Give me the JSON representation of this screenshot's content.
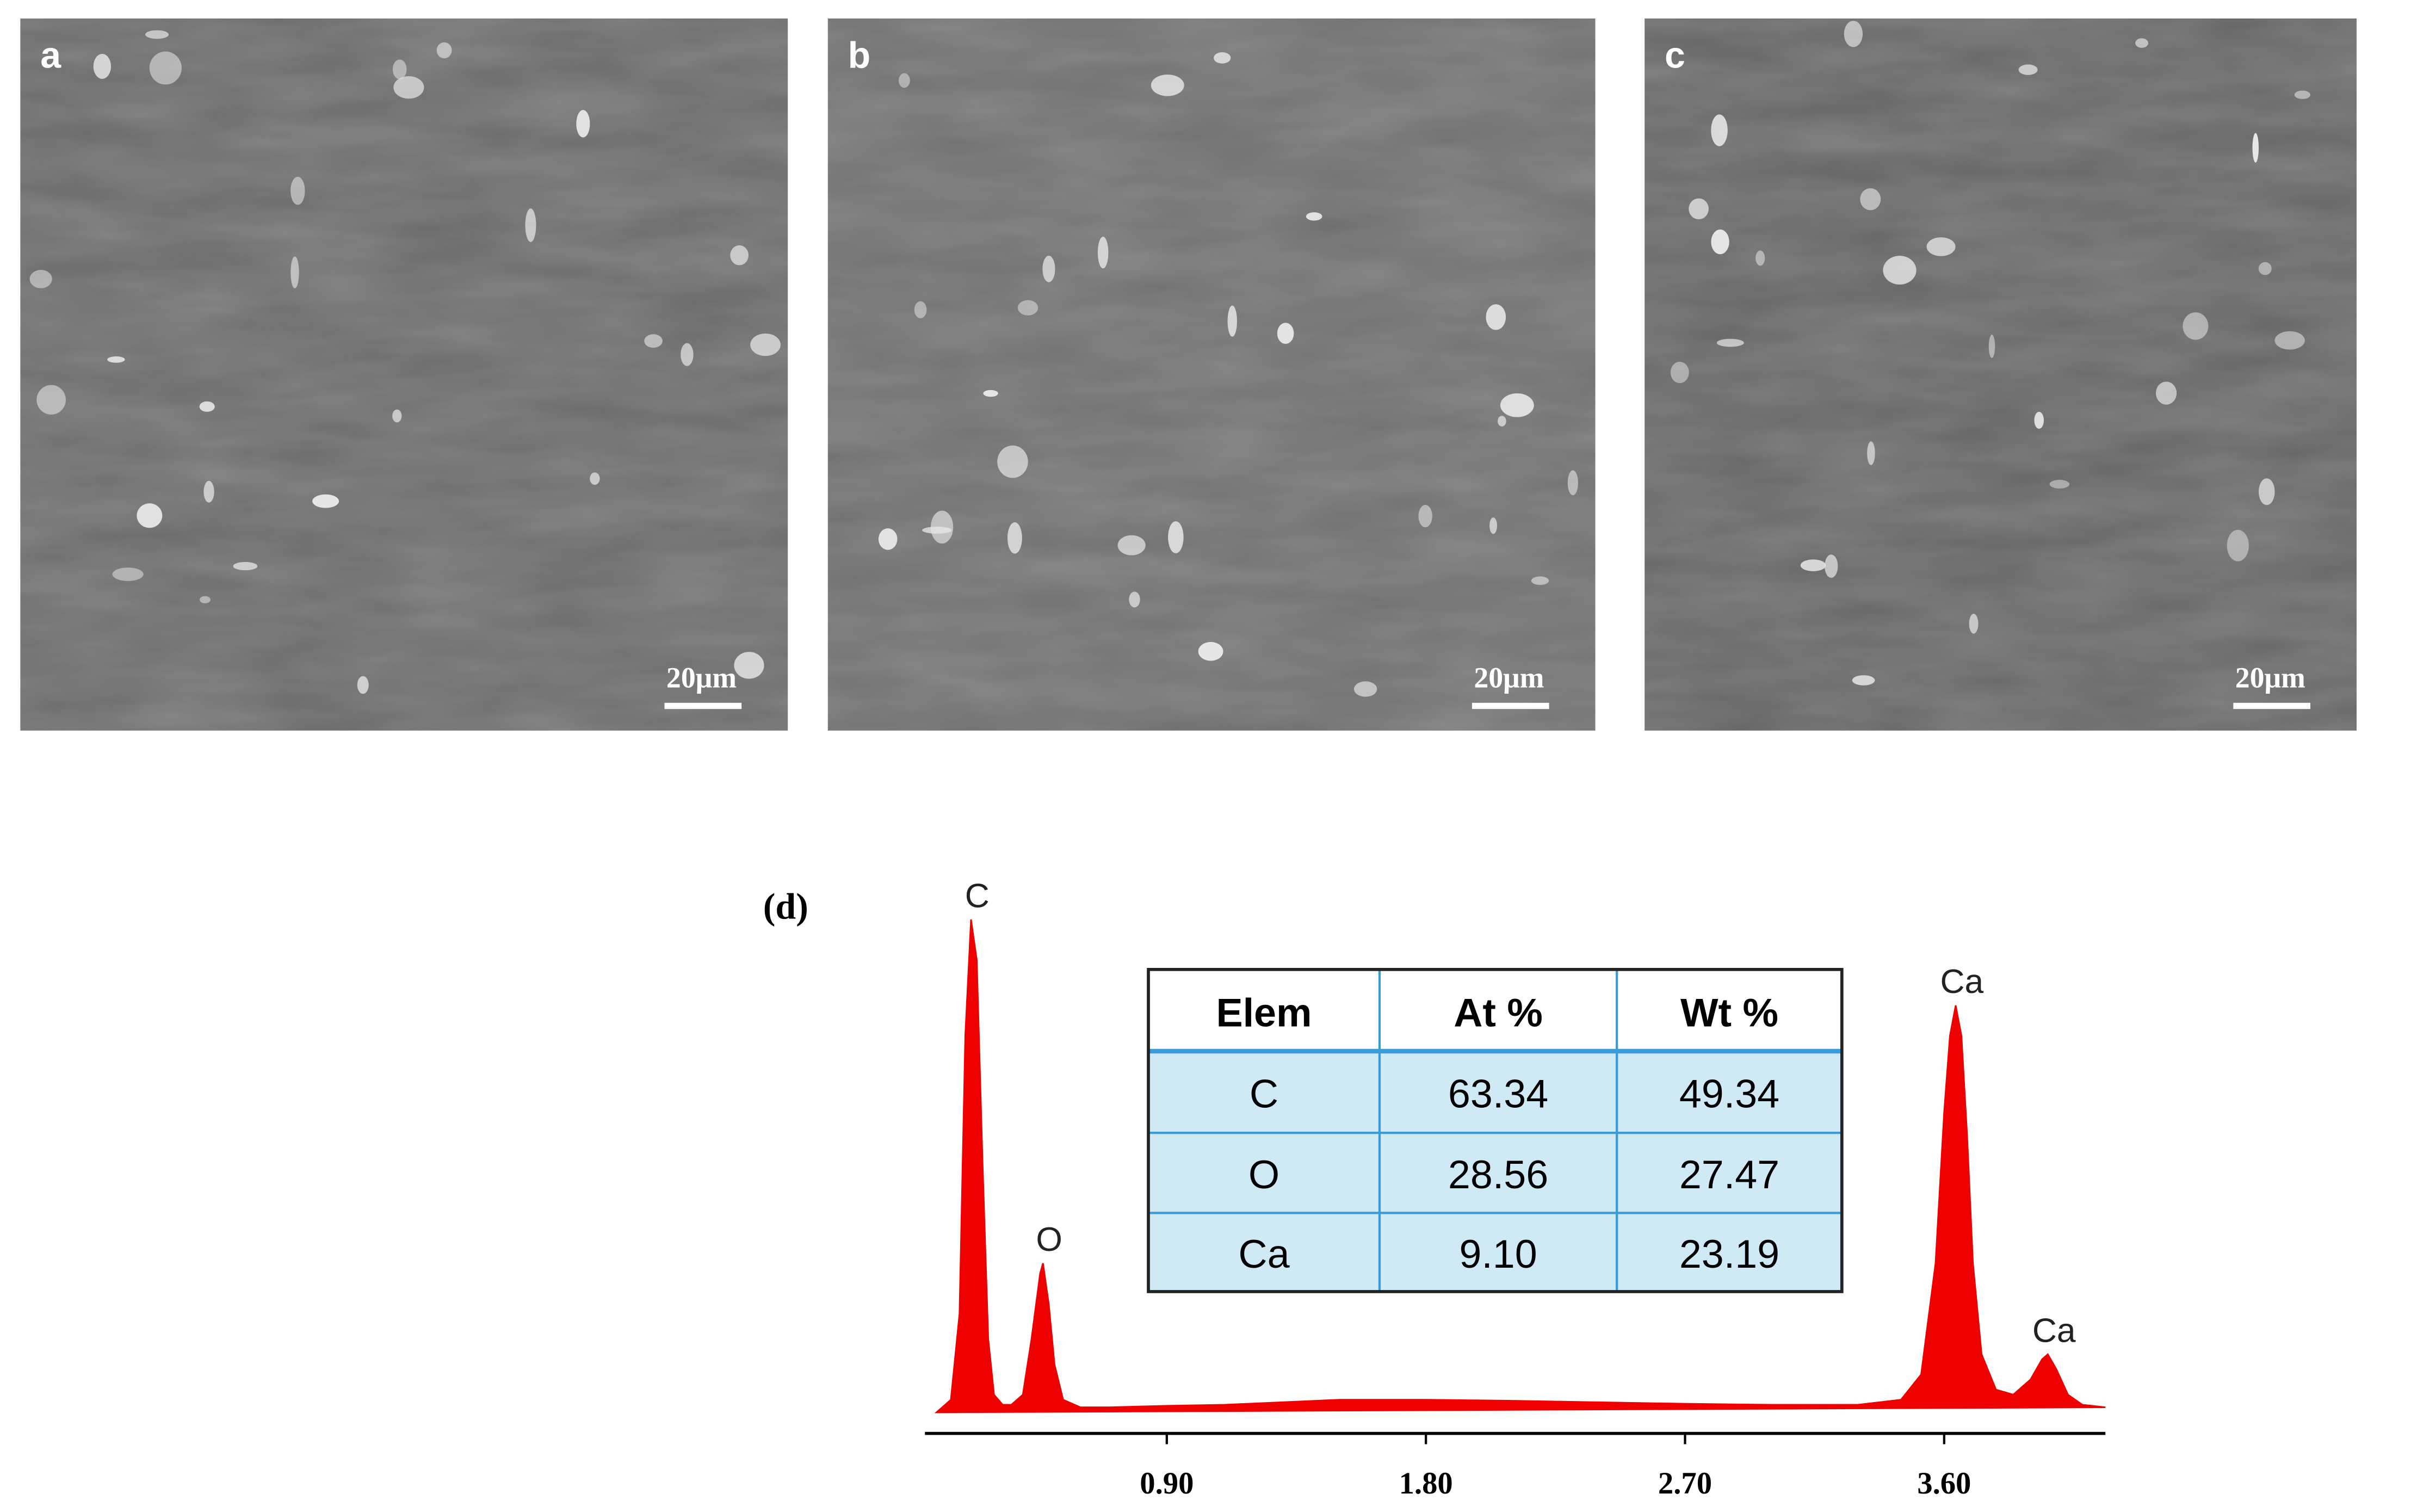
{
  "panels": [
    {
      "label": "a",
      "scale_bar": "20μm"
    },
    {
      "label": "b",
      "scale_bar": "20μm"
    },
    {
      "label": "c",
      "scale_bar": "20μm"
    }
  ],
  "chart_data": {
    "type": "area",
    "label": "(d)",
    "color": "#ee0000",
    "x": [
      0.1,
      0.15,
      0.18,
      0.2,
      0.22,
      0.24,
      0.26,
      0.28,
      0.3,
      0.33,
      0.36,
      0.4,
      0.43,
      0.46,
      0.47,
      0.49,
      0.51,
      0.54,
      0.6,
      0.7,
      0.9,
      1.1,
      1.3,
      1.5,
      1.8,
      2.1,
      2.4,
      2.7,
      3.0,
      3.3,
      3.45,
      3.52,
      3.57,
      3.6,
      3.62,
      3.64,
      3.66,
      3.68,
      3.7,
      3.73,
      3.78,
      3.84,
      3.9,
      3.94,
      3.96,
      3.99,
      4.03,
      4.08,
      4.16
    ],
    "values": [
      0.5,
      3,
      20,
      75,
      98,
      90,
      50,
      15,
      4,
      2,
      2,
      4,
      15,
      28,
      30,
      22,
      10,
      3,
      1.5,
      1.5,
      1.8,
      2,
      2.5,
      3,
      3,
      2.8,
      2.5,
      2.2,
      2,
      2,
      3,
      8,
      30,
      60,
      75,
      81,
      75,
      55,
      30,
      12,
      5,
      4,
      7,
      11,
      12,
      9,
      4,
      2,
      1.5
    ],
    "xlim": [
      0.06,
      4.16
    ],
    "ylim": [
      0,
      100
    ],
    "xticks": [
      {
        "value": 0.9,
        "label": "0.90"
      },
      {
        "value": 1.8,
        "label": "1.80"
      },
      {
        "value": 2.7,
        "label": "2.70"
      },
      {
        "value": 3.6,
        "label": "3.60"
      }
    ],
    "annotations": [
      {
        "text": "C",
        "x": 0.22
      },
      {
        "text": "O",
        "x": 0.47
      },
      {
        "text": "Ca",
        "x": 3.64
      },
      {
        "text": "Ca",
        "x": 3.96
      }
    ],
    "table": {
      "columns": [
        "Elem",
        "At %",
        "Wt %"
      ],
      "rows": [
        [
          "C",
          "63.34",
          "49.34"
        ],
        [
          "O",
          "28.56",
          "27.47"
        ],
        [
          "Ca",
          "9.10",
          "23.19"
        ]
      ]
    }
  }
}
